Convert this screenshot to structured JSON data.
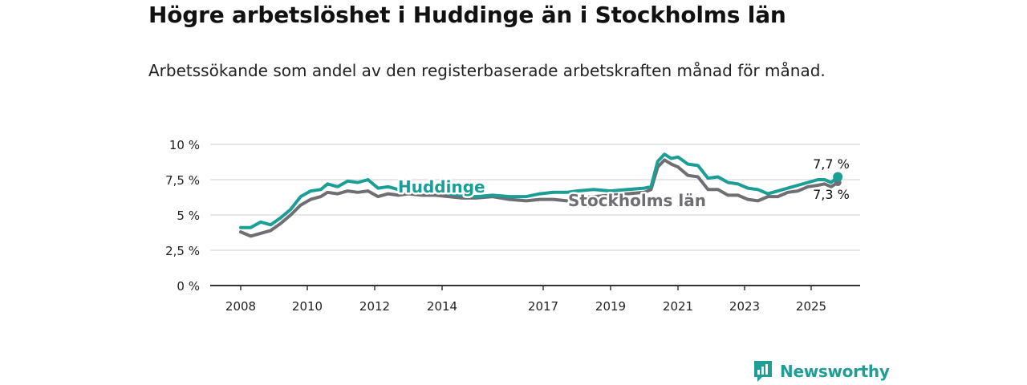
{
  "header": {
    "title": "Högre arbetslöshet i Huddinge än i Stockholms län",
    "subtitle": "Arbetssökande som andel av den registerbaserade arbetskraften månad för månad."
  },
  "brand": {
    "name": "Newsworthy",
    "icon": "newsworthy-logo-icon",
    "color": "#1f9e96"
  },
  "colors": {
    "huddinge": "#1a9e96",
    "stockholm": "#6e6e73",
    "grid": "#d9d9d9",
    "axis": "#333333"
  },
  "chart_data": {
    "type": "line",
    "ylim": [
      0,
      10
    ],
    "y_ticks": [
      0,
      2.5,
      5,
      7.5,
      10
    ],
    "y_tick_labels": [
      "0 %",
      "2,5 %",
      "5 %",
      "7,5 %",
      "10 %"
    ],
    "x_ticks": [
      2008,
      2010,
      2012,
      2014,
      2017,
      2019,
      2021,
      2023,
      2025
    ],
    "x_tick_labels": [
      "2008",
      "2010",
      "2012",
      "2014",
      "2017",
      "2019",
      "2021",
      "2023",
      "2025"
    ],
    "grid": true,
    "series": [
      {
        "name": "Huddinge",
        "color": "#1a9e96",
        "points": [
          [
            2008.0,
            4.1
          ],
          [
            2008.3,
            4.1
          ],
          [
            2008.6,
            4.5
          ],
          [
            2008.9,
            4.3
          ],
          [
            2009.2,
            4.8
          ],
          [
            2009.5,
            5.4
          ],
          [
            2009.8,
            6.3
          ],
          [
            2010.1,
            6.7
          ],
          [
            2010.4,
            6.8
          ],
          [
            2010.6,
            7.2
          ],
          [
            2010.9,
            7.0
          ],
          [
            2011.2,
            7.4
          ],
          [
            2011.5,
            7.3
          ],
          [
            2011.8,
            7.5
          ],
          [
            2012.1,
            6.9
          ],
          [
            2012.4,
            7.0
          ],
          [
            2012.7,
            6.8
          ],
          [
            2013.0,
            7.0
          ],
          [
            2013.4,
            6.8
          ],
          [
            2013.8,
            6.7
          ],
          [
            2014.2,
            6.5
          ],
          [
            2014.6,
            6.4
          ],
          [
            2015.0,
            6.3
          ],
          [
            2015.5,
            6.4
          ],
          [
            2016.0,
            6.3
          ],
          [
            2016.5,
            6.3
          ],
          [
            2016.9,
            6.5
          ],
          [
            2017.3,
            6.6
          ],
          [
            2017.7,
            6.6
          ],
          [
            2018.0,
            6.7
          ],
          [
            2018.5,
            6.8
          ],
          [
            2019.0,
            6.7
          ],
          [
            2019.5,
            6.8
          ],
          [
            2020.0,
            6.9
          ],
          [
            2020.2,
            7.0
          ],
          [
            2020.4,
            8.8
          ],
          [
            2020.6,
            9.3
          ],
          [
            2020.8,
            9.0
          ],
          [
            2021.0,
            9.1
          ],
          [
            2021.3,
            8.6
          ],
          [
            2021.6,
            8.5
          ],
          [
            2021.9,
            7.6
          ],
          [
            2022.2,
            7.7
          ],
          [
            2022.5,
            7.3
          ],
          [
            2022.8,
            7.2
          ],
          [
            2023.1,
            6.9
          ],
          [
            2023.4,
            6.8
          ],
          [
            2023.7,
            6.5
          ],
          [
            2024.0,
            6.7
          ],
          [
            2024.3,
            6.9
          ],
          [
            2024.6,
            7.1
          ],
          [
            2024.9,
            7.3
          ],
          [
            2025.2,
            7.5
          ],
          [
            2025.4,
            7.5
          ],
          [
            2025.6,
            7.3
          ],
          [
            2025.8,
            7.7
          ]
        ]
      },
      {
        "name": "Stockholms län",
        "color": "#6e6e73",
        "points": [
          [
            2008.0,
            3.8
          ],
          [
            2008.3,
            3.5
          ],
          [
            2008.6,
            3.7
          ],
          [
            2008.9,
            3.9
          ],
          [
            2009.2,
            4.4
          ],
          [
            2009.5,
            5.0
          ],
          [
            2009.8,
            5.7
          ],
          [
            2010.1,
            6.1
          ],
          [
            2010.4,
            6.3
          ],
          [
            2010.6,
            6.6
          ],
          [
            2010.9,
            6.5
          ],
          [
            2011.2,
            6.7
          ],
          [
            2011.5,
            6.6
          ],
          [
            2011.8,
            6.7
          ],
          [
            2012.1,
            6.3
          ],
          [
            2012.4,
            6.5
          ],
          [
            2012.7,
            6.4
          ],
          [
            2013.0,
            6.5
          ],
          [
            2013.4,
            6.4
          ],
          [
            2013.8,
            6.4
          ],
          [
            2014.2,
            6.3
          ],
          [
            2014.6,
            6.2
          ],
          [
            2015.0,
            6.2
          ],
          [
            2015.5,
            6.3
          ],
          [
            2016.0,
            6.1
          ],
          [
            2016.5,
            6.0
          ],
          [
            2016.9,
            6.1
          ],
          [
            2017.3,
            6.1
          ],
          [
            2017.7,
            6.0
          ],
          [
            2018.0,
            6.2
          ],
          [
            2018.5,
            6.3
          ],
          [
            2019.0,
            6.4
          ],
          [
            2019.5,
            6.5
          ],
          [
            2020.0,
            6.6
          ],
          [
            2020.2,
            6.8
          ],
          [
            2020.4,
            8.4
          ],
          [
            2020.6,
            8.9
          ],
          [
            2020.8,
            8.6
          ],
          [
            2021.0,
            8.4
          ],
          [
            2021.3,
            7.8
          ],
          [
            2021.6,
            7.7
          ],
          [
            2021.9,
            6.8
          ],
          [
            2022.2,
            6.8
          ],
          [
            2022.5,
            6.4
          ],
          [
            2022.8,
            6.4
          ],
          [
            2023.1,
            6.1
          ],
          [
            2023.4,
            6.0
          ],
          [
            2023.7,
            6.3
          ],
          [
            2024.0,
            6.3
          ],
          [
            2024.3,
            6.6
          ],
          [
            2024.6,
            6.7
          ],
          [
            2024.9,
            7.0
          ],
          [
            2025.2,
            7.1
          ],
          [
            2025.4,
            7.2
          ],
          [
            2025.6,
            7.0
          ],
          [
            2025.8,
            7.3
          ]
        ]
      }
    ],
    "end_labels": {
      "huddinge": "7,7 %",
      "stockholm": "7,3 %"
    }
  }
}
